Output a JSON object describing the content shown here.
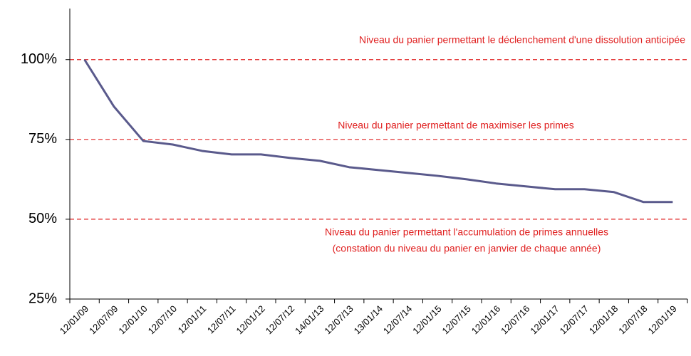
{
  "chart_data": {
    "type": "line",
    "categories": [
      "12/01/09",
      "12/07/09",
      "12/01/10",
      "12/07/10",
      "12/01/11",
      "12/07/11",
      "12/01/12",
      "12/07/12",
      "14/01/13",
      "12/07/13",
      "13/01/14",
      "12/07/14",
      "12/01/15",
      "12/07/15",
      "12/01/16",
      "12/07/16",
      "12/01/17",
      "12/07/17",
      "12/01/18",
      "12/07/18",
      "12/01/19"
    ],
    "values": [
      100,
      85.3,
      74.5,
      73.4,
      71.4,
      70.3,
      70.3,
      69.2,
      68.3,
      66.3,
      65.4,
      64.5,
      63.6,
      62.5,
      61.2,
      60.3,
      59.4,
      59.4,
      58.5,
      55.4,
      55.4
    ],
    "color": "#5a5a8c",
    "ylim": [
      25,
      116
    ],
    "yticks": [
      {
        "value": 25,
        "label": "25%"
      },
      {
        "value": 50,
        "label": "50%"
      },
      {
        "value": 75,
        "label": "75%"
      },
      {
        "value": 100,
        "label": "100%"
      }
    ],
    "reference_lines": [
      {
        "value": 100,
        "labels": [
          "Niveau du panier permettant le déclenchement d'une dissolution anticipée"
        ]
      },
      {
        "value": 75,
        "labels": [
          "Niveau du panier permettant de maximiser les primes"
        ]
      },
      {
        "value": 50,
        "labels": [
          "Niveau du panier permettant l'accumulation de primes annuelles",
          "(constation du niveau du panier en janvier de chaque année)"
        ]
      }
    ],
    "reference_color": "#e02020"
  }
}
